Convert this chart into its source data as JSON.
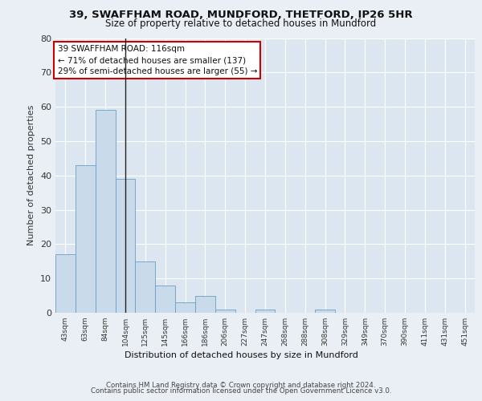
{
  "title1": "39, SWAFFHAM ROAD, MUNDFORD, THETFORD, IP26 5HR",
  "title2": "Size of property relative to detached houses in Mundford",
  "xlabel": "Distribution of detached houses by size in Mundford",
  "ylabel": "Number of detached properties",
  "bar_labels": [
    "43sqm",
    "63sqm",
    "84sqm",
    "104sqm",
    "125sqm",
    "145sqm",
    "166sqm",
    "186sqm",
    "206sqm",
    "227sqm",
    "247sqm",
    "268sqm",
    "288sqm",
    "308sqm",
    "329sqm",
    "349sqm",
    "370sqm",
    "390sqm",
    "411sqm",
    "431sqm",
    "451sqm"
  ],
  "bar_values": [
    17,
    43,
    59,
    39,
    15,
    8,
    3,
    5,
    1,
    0,
    1,
    0,
    0,
    1,
    0,
    0,
    0,
    0,
    0,
    0,
    0
  ],
  "bar_color": "#c9daea",
  "bar_edge_color": "#6b9fc4",
  "background_color": "#eaeef5",
  "plot_bg_color": "#dce6f0",
  "grid_color": "#ffffff",
  "vline_x": 3.0,
  "vline_color": "#222222",
  "annotation_text1": "39 SWAFFHAM ROAD: 116sqm",
  "annotation_text2": "← 71% of detached houses are smaller (137)",
  "annotation_text3": "29% of semi-detached houses are larger (55) →",
  "annotation_box_color": "#ffffff",
  "annotation_box_edge": "#cc0000",
  "ylim": [
    0,
    80
  ],
  "yticks": [
    0,
    10,
    20,
    30,
    40,
    50,
    60,
    70,
    80
  ],
  "footer1": "Contains HM Land Registry data © Crown copyright and database right 2024.",
  "footer2": "Contains public sector information licensed under the Open Government Licence v3.0."
}
